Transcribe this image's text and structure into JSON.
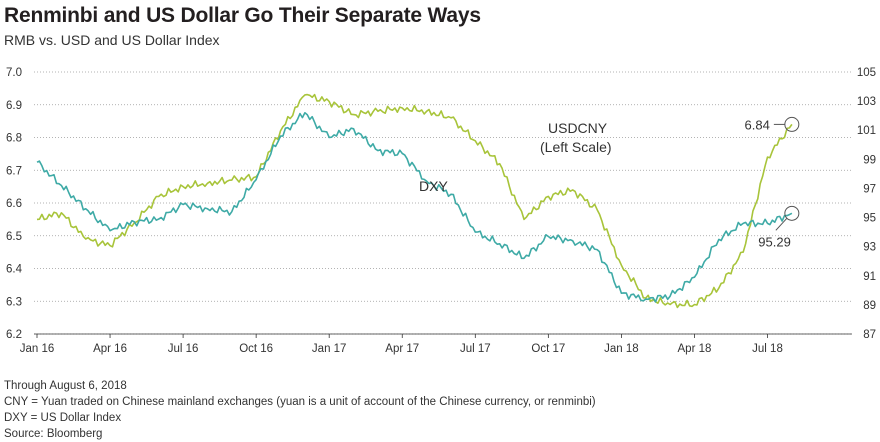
{
  "title": "Renminbi and US Dollar Go Their Separate Ways",
  "subtitle": "RMB vs. USD and US Dollar Index",
  "notes": [
    "Through August 6, 2018",
    "CNY = Yuan traded on Chinese mainland exchanges (yuan is a unit of account of the Chinese currency, or renminbi)",
    "DXY = US Dollar Index",
    "Source: Bloomberg"
  ],
  "chart_data": {
    "type": "line",
    "title": "Renminbi and US Dollar Go Their Separate Ways",
    "subtitle": "RMB vs. USD and US Dollar Index",
    "x_tick_labels": [
      "Jan 16",
      "Apr 16",
      "Jul 16",
      "Oct 16",
      "Jan 17",
      "Apr 17",
      "Jul 17",
      "Oct 17",
      "Jan 18",
      "Apr 18",
      "Jul 18"
    ],
    "left_axis": {
      "min": 6.2,
      "max": 7.0,
      "ticks": [
        "6.2",
        "6.3",
        "6.4",
        "6.5",
        "6.6",
        "6.7",
        "6.8",
        "6.9",
        "7.0"
      ]
    },
    "right_axis": {
      "min": 87,
      "max": 105,
      "ticks": [
        "87",
        "89",
        "91",
        "93",
        "95",
        "97",
        "99",
        "101",
        "103",
        "105"
      ]
    },
    "grid": "horizontal dotted",
    "series": [
      {
        "name": "USDCNY",
        "label": "USDCNY\n(Left Scale)",
        "axis": "left",
        "color": "#a8c43a",
        "points": [
          [
            "Jan 16",
            6.55
          ],
          [
            "Feb 16",
            6.57
          ],
          [
            "Mar 16",
            6.49
          ],
          [
            "Apr 16",
            6.47
          ],
          [
            "May 16",
            6.54
          ],
          [
            "Jun 16",
            6.62
          ],
          [
            "Jul 16",
            6.65
          ],
          [
            "Aug 16",
            6.66
          ],
          [
            "Sep 16",
            6.67
          ],
          [
            "Oct 16",
            6.68
          ],
          [
            "Nov 16",
            6.82
          ],
          [
            "Dec 16",
            6.93
          ],
          [
            "Jan 17",
            6.91
          ],
          [
            "Feb 17",
            6.87
          ],
          [
            "Mar 17",
            6.88
          ],
          [
            "Apr 17",
            6.89
          ],
          [
            "May 17",
            6.88
          ],
          [
            "Jun 17",
            6.86
          ],
          [
            "Jul 17",
            6.79
          ],
          [
            "Aug 17",
            6.72
          ],
          [
            "Sep 17",
            6.55
          ],
          [
            "Oct 17",
            6.62
          ],
          [
            "Nov 17",
            6.64
          ],
          [
            "Dec 17",
            6.58
          ],
          [
            "Jan 18",
            6.41
          ],
          [
            "Feb 18",
            6.31
          ],
          [
            "Mar 18",
            6.29
          ],
          [
            "Apr 18",
            6.29
          ],
          [
            "May 18",
            6.34
          ],
          [
            "Jun 18",
            6.45
          ],
          [
            "Jul 18",
            6.74
          ],
          [
            "Aug 18",
            6.84
          ]
        ]
      },
      {
        "name": "DXY",
        "label": "DXY",
        "axis": "right",
        "color": "#3eaaa6",
        "points": [
          [
            "Jan 16",
            98.8
          ],
          [
            "Feb 16",
            97.2
          ],
          [
            "Mar 16",
            95.6
          ],
          [
            "Apr 16",
            94.1
          ],
          [
            "May 16",
            94.7
          ],
          [
            "Jun 16",
            94.9
          ],
          [
            "Jul 16",
            95.9
          ],
          [
            "Aug 16",
            95.6
          ],
          [
            "Sep 16",
            95.4
          ],
          [
            "Oct 16",
            97.6
          ],
          [
            "Nov 16",
            100.6
          ],
          [
            "Dec 16",
            102.2
          ],
          [
            "Jan 17",
            100.5
          ],
          [
            "Feb 17",
            101.1
          ],
          [
            "Mar 17",
            99.6
          ],
          [
            "Apr 17",
            99.4
          ],
          [
            "May 17",
            97.5
          ],
          [
            "Jun 17",
            96.6
          ],
          [
            "Jul 17",
            94.0
          ],
          [
            "Aug 17",
            93.2
          ],
          [
            "Sep 17",
            92.2
          ],
          [
            "Oct 17",
            93.7
          ],
          [
            "Nov 17",
            93.4
          ],
          [
            "Dec 17",
            92.8
          ],
          [
            "Jan 18",
            89.8
          ],
          [
            "Feb 18",
            89.4
          ],
          [
            "Mar 18",
            89.6
          ],
          [
            "Apr 18",
            90.9
          ],
          [
            "May 18",
            93.5
          ],
          [
            "Jun 18",
            94.6
          ],
          [
            "Jul 18",
            94.6
          ],
          [
            "Aug 18",
            95.29
          ]
        ]
      }
    ],
    "annotations": [
      {
        "series": "USDCNY",
        "text": "6.84",
        "value": 6.84
      },
      {
        "series": "DXY",
        "text": "95.29",
        "value": 95.29
      }
    ]
  }
}
